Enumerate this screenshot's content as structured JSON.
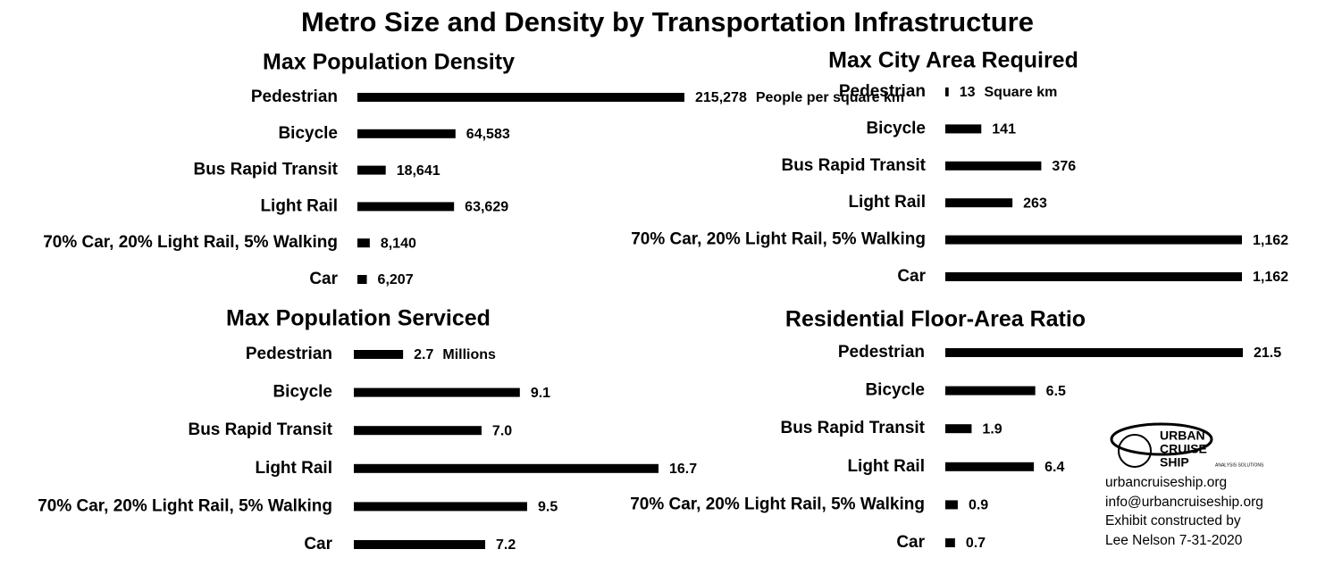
{
  "title": "Metro Size and Density by Transportation Infrastructure",
  "chart_data": [
    {
      "type": "bar",
      "orientation": "horizontal",
      "title": "Max Population Density",
      "color": "#000000",
      "categories": [
        "Pedestrian",
        "Bicycle",
        "Bus Rapid Transit",
        "Light Rail",
        "70% Car, 20% Light Rail, 5% Walking",
        "Car"
      ],
      "values": [
        215278,
        64583,
        18641,
        63629,
        8140,
        6207
      ],
      "value_labels": [
        "215,278",
        "64,583",
        "18,641",
        "63,629",
        "8,140",
        "6,207"
      ],
      "unit_label": "People per square km"
    },
    {
      "type": "bar",
      "orientation": "horizontal",
      "title": "Max City Area Required",
      "color": "#000000",
      "categories": [
        "Pedestrian",
        "Bicycle",
        "Bus Rapid Transit",
        "Light Rail",
        "70% Car, 20% Light Rail, 5% Walking",
        "Car"
      ],
      "values": [
        13,
        141,
        376,
        263,
        1162,
        1162
      ],
      "value_labels": [
        "13",
        "141",
        "376",
        "263",
        "1,162",
        "1,162"
      ],
      "unit_label": "Square km"
    },
    {
      "type": "bar",
      "orientation": "horizontal",
      "title": "Max Population Serviced",
      "color": "#000000",
      "categories": [
        "Pedestrian",
        "Bicycle",
        "Bus Rapid Transit",
        "Light Rail",
        "70% Car, 20% Light Rail, 5% Walking",
        "Car"
      ],
      "values": [
        2.7,
        9.1,
        7.0,
        16.7,
        9.5,
        7.2
      ],
      "value_labels": [
        "2.7",
        "9.1",
        "7.0",
        "16.7",
        "9.5",
        "7.2"
      ],
      "unit_label": "Millions"
    },
    {
      "type": "bar",
      "orientation": "horizontal",
      "title": "Residential Floor-Area Ratio",
      "color": "#000000",
      "categories": [
        "Pedestrian",
        "Bicycle",
        "Bus Rapid Transit",
        "Light Rail",
        "70% Car, 20% Light Rail, 5% Walking",
        "Car"
      ],
      "values": [
        21.5,
        6.5,
        1.9,
        6.4,
        0.9,
        0.7
      ]
    }
  ],
  "logo": {
    "lines": [
      "URBAN",
      "CRUISE",
      "SHIP"
    ],
    "tagline": "ANALYSIS SOLUTIONS"
  },
  "footer": [
    "urbancruiseship.org",
    "info@urbancruiseship.org",
    "Exhibit constructed by",
    "Lee Nelson 7-31-2020"
  ]
}
